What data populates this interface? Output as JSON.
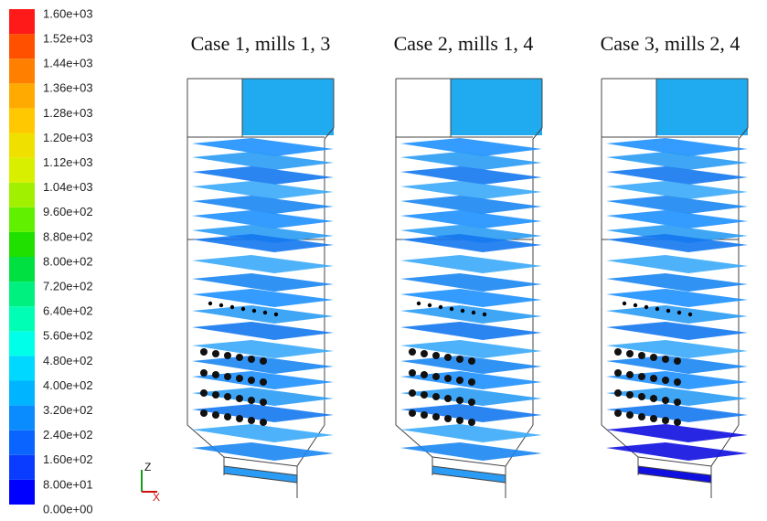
{
  "colorbar": {
    "ticks": [
      {
        "value": 0,
        "label": "0.00e+00"
      },
      {
        "value": 80,
        "label": "8.00e+01"
      },
      {
        "value": 160,
        "label": "1.60e+02"
      },
      {
        "value": 240,
        "label": "2.40e+02"
      },
      {
        "value": 320,
        "label": "3.20e+02"
      },
      {
        "value": 400,
        "label": "4.00e+02"
      },
      {
        "value": 480,
        "label": "4.80e+02"
      },
      {
        "value": 560,
        "label": "5.60e+02"
      },
      {
        "value": 640,
        "label": "6.40e+02"
      },
      {
        "value": 720,
        "label": "7.20e+02"
      },
      {
        "value": 800,
        "label": "8.00e+02"
      },
      {
        "value": 880,
        "label": "8.80e+02"
      },
      {
        "value": 960,
        "label": "9.60e+02"
      },
      {
        "value": 1040,
        "label": "1.04e+03"
      },
      {
        "value": 1120,
        "label": "1.12e+03"
      },
      {
        "value": 1200,
        "label": "1.20e+03"
      },
      {
        "value": 1280,
        "label": "1.28e+03"
      },
      {
        "value": 1360,
        "label": "1.36e+03"
      },
      {
        "value": 1440,
        "label": "1.44e+03"
      },
      {
        "value": 1520,
        "label": "1.52e+03"
      },
      {
        "value": 1600,
        "label": "1.60e+03"
      }
    ],
    "colors": [
      "#0000ff",
      "#0a3cff",
      "#0a64ff",
      "#0a8cff",
      "#00b4ff",
      "#00d8ff",
      "#00ffe8",
      "#00ffb4",
      "#00f080",
      "#00e040",
      "#20e000",
      "#60f000",
      "#a0f000",
      "#d8f000",
      "#f0e000",
      "#ffc800",
      "#ffaa00",
      "#ff8000",
      "#ff5000",
      "#ff1a1a"
    ]
  },
  "panels": [
    {
      "title": "Case 1, mills 1, 3"
    },
    {
      "title": "Case 2, mills 1, 4"
    },
    {
      "title": "Case 3, mills 2, 4"
    }
  ],
  "axes": {
    "z": "Z",
    "x": "X"
  }
}
